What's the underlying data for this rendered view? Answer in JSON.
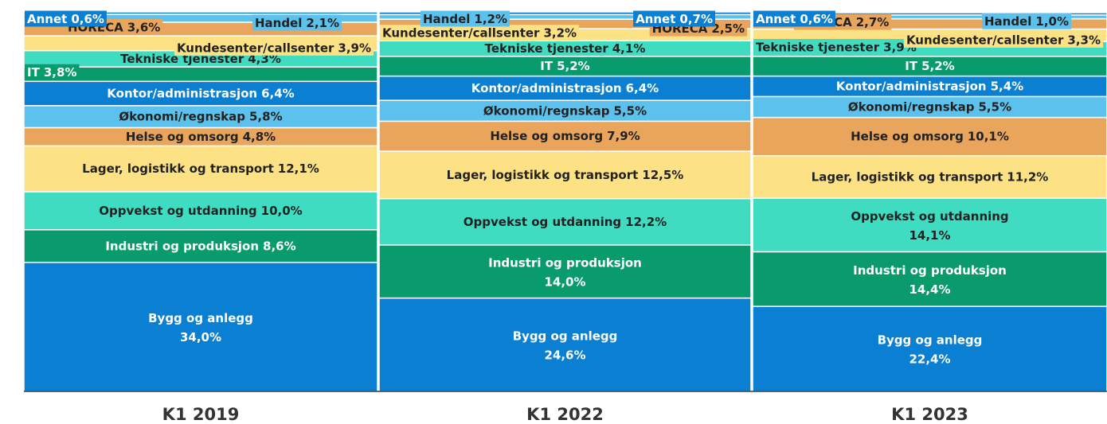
{
  "chart_data": {
    "type": "bar",
    "stacked": true,
    "categories": [
      "K1 2019",
      "K1 2022",
      "K1 2023"
    ],
    "ylim": [
      0,
      100
    ],
    "series": [
      {
        "name": "Bygg og anlegg",
        "color": "#0b7fd1",
        "values": [
          34.0,
          24.6,
          22.4
        ],
        "value_labels": [
          "34,0%",
          "24,6%",
          "22,4%"
        ]
      },
      {
        "name": "Industri og produksjon",
        "color": "#0a9b6c",
        "values": [
          8.6,
          14.0,
          14.4
        ],
        "value_labels": [
          "8,6%",
          "14,0%",
          "14,4%"
        ]
      },
      {
        "name": "Oppvekst og utdanning",
        "color": "#3fdcc2",
        "values": [
          10.0,
          12.2,
          14.1
        ],
        "value_labels": [
          "10,0%",
          "12,2%",
          "14,1%"
        ]
      },
      {
        "name": "Lager, logistikk og transport",
        "color": "#fde285",
        "values": [
          12.1,
          12.5,
          11.2
        ],
        "value_labels": [
          "12,1%",
          "12,5%",
          "11,2%"
        ]
      },
      {
        "name": "Helse og omsorg",
        "color": "#e9a55c",
        "values": [
          4.8,
          7.9,
          10.1
        ],
        "value_labels": [
          "4,8%",
          "7,9%",
          "10,1%"
        ]
      },
      {
        "name": "Økonomi/regnskap",
        "color": "#5cc1ec",
        "values": [
          5.8,
          5.5,
          5.5
        ],
        "value_labels": [
          "5,8%",
          "5,5%",
          "5,5%"
        ]
      },
      {
        "name": "Kontor/administrasjon",
        "color": "#0b7fd1",
        "values": [
          6.4,
          6.4,
          5.4
        ],
        "value_labels": [
          "6,4%",
          "6,4%",
          "5,4%"
        ]
      },
      {
        "name": "IT",
        "color": "#0a9b6c",
        "values": [
          3.8,
          5.2,
          5.2
        ],
        "value_labels": [
          "3,8%",
          "5,2%",
          "5,2%"
        ]
      },
      {
        "name": "Tekniske tjenester",
        "color": "#3fdcc2",
        "values": [
          4.3,
          4.1,
          3.9
        ],
        "value_labels": [
          "4,3%",
          "4,1%",
          "3,9%"
        ]
      },
      {
        "name": "Kundesenter/callsenter",
        "color": "#fde285",
        "values": [
          3.9,
          3.2,
          3.3
        ],
        "value_labels": [
          "3,9%",
          "3,2%",
          "3,3%"
        ]
      },
      {
        "name": "HORECA",
        "color": "#e9a55c",
        "values": [
          3.6,
          2.5,
          2.7
        ],
        "value_labels": [
          "3,6%",
          "2,5%",
          "2,7%"
        ]
      },
      {
        "name": "Handel",
        "color": "#5cc1ec",
        "values": [
          2.1,
          1.2,
          1.0
        ],
        "value_labels": [
          "2,1%",
          "1,2%",
          "1,0%"
        ]
      },
      {
        "name": "Annet",
        "color": "#0b7fd1",
        "values": [
          0.6,
          0.7,
          0.6
        ],
        "value_labels": [
          "0,6%",
          "0,7%",
          "0,6%"
        ]
      }
    ]
  }
}
